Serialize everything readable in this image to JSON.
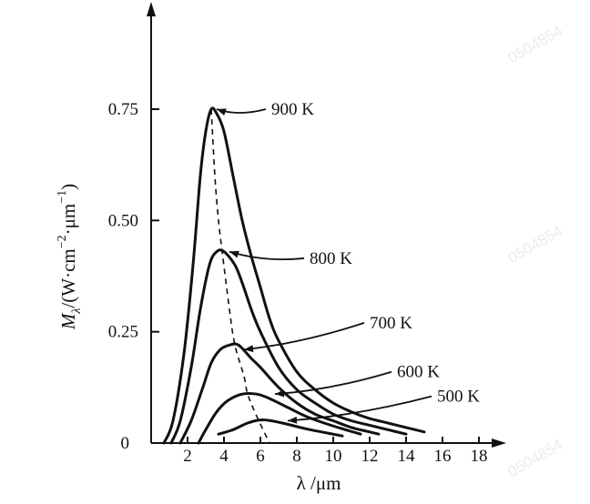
{
  "chart_data": {
    "type": "line",
    "x_axis": {
      "label": "λ /μm",
      "ticks": [
        "2",
        "4",
        "6",
        "8",
        "10",
        "12",
        "14",
        "16",
        "18"
      ],
      "tick_values": [
        2,
        4,
        6,
        8,
        10,
        12,
        14,
        16,
        18
      ],
      "range": [
        0,
        19
      ]
    },
    "y_axis": {
      "label_main": "M",
      "label_sub": "λ",
      "label_rest": "/(W·cm",
      "label_exp1": "−2",
      "label_mid": "·μm",
      "label_exp2": "−1",
      "label_end": ")",
      "ticks": [
        "0",
        "0.25",
        "0.50",
        "0.75"
      ],
      "tick_values": [
        0,
        0.25,
        0.5,
        0.75
      ],
      "range": [
        0,
        0.97
      ]
    },
    "grid": false,
    "series": [
      {
        "name": "900 K",
        "points": [
          [
            0.7,
            0.0
          ],
          [
            1.2,
            0.05
          ],
          [
            1.8,
            0.2
          ],
          [
            2.3,
            0.4
          ],
          [
            2.7,
            0.6
          ],
          [
            3.0,
            0.7
          ],
          [
            3.3,
            0.75
          ],
          [
            3.6,
            0.74
          ],
          [
            4.0,
            0.7
          ],
          [
            4.5,
            0.6
          ],
          [
            5.0,
            0.5
          ],
          [
            5.5,
            0.42
          ],
          [
            6.0,
            0.35
          ],
          [
            6.5,
            0.28
          ],
          [
            7.0,
            0.23
          ],
          [
            8.0,
            0.16
          ],
          [
            9.0,
            0.12
          ],
          [
            10.0,
            0.09
          ],
          [
            11.0,
            0.07
          ],
          [
            12.0,
            0.055
          ],
          [
            13.0,
            0.045
          ],
          [
            14.0,
            0.035
          ],
          [
            15.0,
            0.025
          ]
        ]
      },
      {
        "name": "800 K",
        "points": [
          [
            1.1,
            0.0
          ],
          [
            1.6,
            0.05
          ],
          [
            2.2,
            0.17
          ],
          [
            2.7,
            0.3
          ],
          [
            3.2,
            0.4
          ],
          [
            3.6,
            0.43
          ],
          [
            4.0,
            0.43
          ],
          [
            4.6,
            0.4
          ],
          [
            5.0,
            0.36
          ],
          [
            5.5,
            0.3
          ],
          [
            6.0,
            0.25
          ],
          [
            7.0,
            0.17
          ],
          [
            8.0,
            0.12
          ],
          [
            9.0,
            0.09
          ],
          [
            10.0,
            0.065
          ],
          [
            11.0,
            0.05
          ],
          [
            12.0,
            0.04
          ],
          [
            13.0,
            0.03
          ],
          [
            14.0,
            0.02
          ]
        ]
      },
      {
        "name": "700 K",
        "points": [
          [
            1.6,
            0.0
          ],
          [
            2.2,
            0.05
          ],
          [
            2.8,
            0.12
          ],
          [
            3.3,
            0.18
          ],
          [
            3.8,
            0.21
          ],
          [
            4.3,
            0.22
          ],
          [
            4.8,
            0.22
          ],
          [
            5.5,
            0.19
          ],
          [
            6.0,
            0.17
          ],
          [
            7.0,
            0.125
          ],
          [
            8.0,
            0.09
          ],
          [
            9.0,
            0.065
          ],
          [
            10.0,
            0.05
          ],
          [
            11.0,
            0.035
          ],
          [
            12.0,
            0.025
          ],
          [
            12.5,
            0.02
          ]
        ]
      },
      {
        "name": "600 K",
        "points": [
          [
            2.6,
            0.0
          ],
          [
            3.0,
            0.03
          ],
          [
            3.6,
            0.07
          ],
          [
            4.2,
            0.095
          ],
          [
            5.0,
            0.11
          ],
          [
            5.8,
            0.11
          ],
          [
            6.5,
            0.1
          ],
          [
            7.5,
            0.08
          ],
          [
            8.5,
            0.06
          ],
          [
            9.5,
            0.045
          ],
          [
            10.5,
            0.032
          ],
          [
            11.5,
            0.02
          ]
        ]
      },
      {
        "name": "500 K",
        "points": [
          [
            3.7,
            0.02
          ],
          [
            4.5,
            0.03
          ],
          [
            5.3,
            0.045
          ],
          [
            6.0,
            0.052
          ],
          [
            6.6,
            0.05
          ],
          [
            7.5,
            0.042
          ],
          [
            8.5,
            0.032
          ],
          [
            9.5,
            0.024
          ],
          [
            10.5,
            0.016
          ]
        ]
      }
    ],
    "peak_locus": {
      "style": "dashed",
      "points": [
        [
          3.3,
          0.75
        ],
        [
          3.5,
          0.6
        ],
        [
          3.7,
          0.5
        ],
        [
          3.9,
          0.43
        ],
        [
          4.3,
          0.3
        ],
        [
          4.6,
          0.22
        ],
        [
          5.1,
          0.15
        ],
        [
          5.3,
          0.11
        ],
        [
          5.8,
          0.06
        ],
        [
          6.5,
          0.0
        ]
      ]
    },
    "labels": [
      {
        "series": "900 K",
        "text": "900 K",
        "label_x": 6.6,
        "label_y": 0.75,
        "target_x": 3.3,
        "target_y": 0.75
      },
      {
        "series": "800 K",
        "text": "800 K",
        "label_x": 8.7,
        "label_y": 0.415,
        "target_x": 4.0,
        "target_y": 0.43
      },
      {
        "series": "700 K",
        "text": "700 K",
        "label_x": 12.0,
        "label_y": 0.27,
        "target_x": 4.8,
        "target_y": 0.21
      },
      {
        "series": "600 K",
        "text": "600 K",
        "label_x": 13.5,
        "label_y": 0.16,
        "target_x": 6.5,
        "target_y": 0.11
      },
      {
        "series": "500 K",
        "text": "500 K",
        "label_x": 15.7,
        "label_y": 0.105,
        "target_x": 7.2,
        "target_y": 0.05
      }
    ]
  }
}
